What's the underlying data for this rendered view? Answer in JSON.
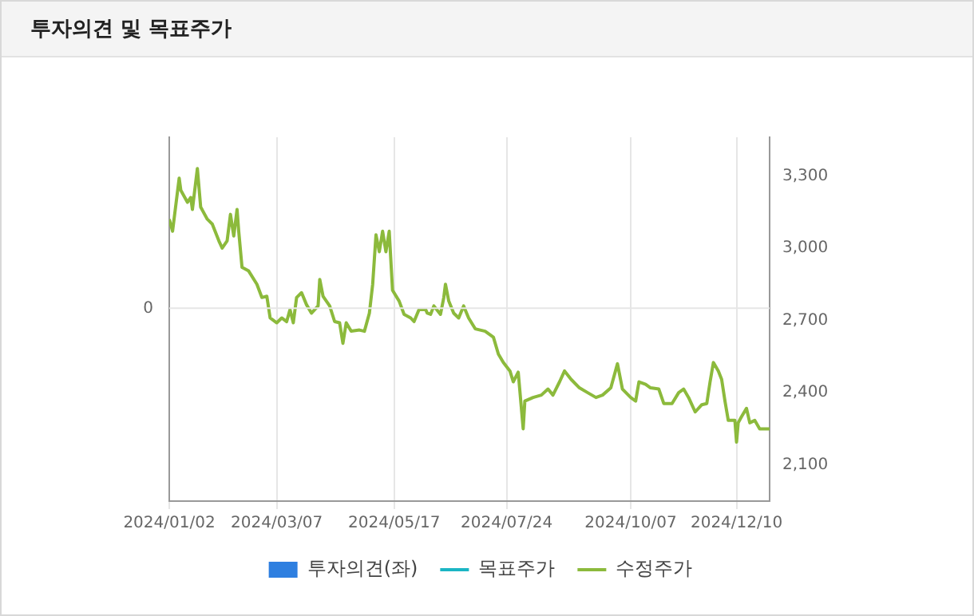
{
  "chart_data": {
    "type": "line",
    "title": "투자의견 및 목표주가",
    "xlim": [
      "2024-01-02",
      "2024-12-30"
    ],
    "xticks": [
      {
        "value": "2024-01-02",
        "label": "2024/01/02"
      },
      {
        "value": "2024-03-07",
        "label": "2024/03/07"
      },
      {
        "value": "2024-05-17",
        "label": "2024/05/17"
      },
      {
        "value": "2024-07-24",
        "label": "2024/07/24"
      },
      {
        "value": "2024-10-07",
        "label": "2024/10/07"
      },
      {
        "value": "2024-12-10",
        "label": "2024/12/10"
      }
    ],
    "annotations": [
      "0"
    ],
    "y2lim": [
      1950,
      3460
    ],
    "y2ticks": [
      {
        "value": 2100,
        "label": "2,100"
      },
      {
        "value": 2400,
        "label": "2,400"
      },
      {
        "value": 2700,
        "label": "2,700"
      },
      {
        "value": 3000,
        "label": "3,000"
      },
      {
        "value": 3300,
        "label": "3,300"
      }
    ],
    "grid": true,
    "legend": "bottom",
    "marker": "none",
    "line_style": "solid",
    "series": [
      {
        "name": "투자의견(좌)",
        "type": "bar",
        "color": "#2e7fe0"
      },
      {
        "name": "목표주가",
        "type": "line",
        "color": "#1bb5c4",
        "axis": "y2"
      },
      {
        "name": "수정주가",
        "color": "#8cba3c",
        "axis": "y2",
        "x": [
          "2024-01-02",
          "2024-01-04",
          "2024-01-08",
          "2024-01-09",
          "2024-01-13",
          "2024-01-15",
          "2024-01-16",
          "2024-01-19",
          "2024-01-21",
          "2024-01-25",
          "2024-01-28",
          "2024-02-01",
          "2024-02-03",
          "2024-02-06",
          "2024-02-08",
          "2024-02-10",
          "2024-02-12",
          "2024-02-13",
          "2024-02-15",
          "2024-02-19",
          "2024-02-24",
          "2024-02-27",
          "2024-03-01",
          "2024-03-03",
          "2024-03-07",
          "2024-03-10",
          "2024-03-13",
          "2024-03-15",
          "2024-03-17",
          "2024-03-19",
          "2024-03-22",
          "2024-03-25",
          "2024-03-28",
          "2024-04-01",
          "2024-04-02",
          "2024-04-04",
          "2024-04-08",
          "2024-04-11",
          "2024-04-14",
          "2024-04-16",
          "2024-04-18",
          "2024-04-21",
          "2024-04-26",
          "2024-04-29",
          "2024-05-02",
          "2024-05-04",
          "2024-05-06",
          "2024-05-08",
          "2024-05-10",
          "2024-05-12",
          "2024-05-14",
          "2024-05-16",
          "2024-05-20",
          "2024-05-23",
          "2024-05-27",
          "2024-05-29",
          "2024-06-01",
          "2024-06-05",
          "2024-06-06",
          "2024-06-08",
          "2024-06-10",
          "2024-06-14",
          "2024-06-16",
          "2024-06-17",
          "2024-06-19",
          "2024-06-22",
          "2024-06-25",
          "2024-06-28",
          "2024-07-01",
          "2024-07-05",
          "2024-07-11",
          "2024-07-16",
          "2024-07-19",
          "2024-07-22",
          "2024-07-26",
          "2024-07-28",
          "2024-07-31",
          "2024-08-03",
          "2024-08-04",
          "2024-08-09",
          "2024-08-14",
          "2024-08-18",
          "2024-08-21",
          "2024-08-25",
          "2024-08-28",
          "2024-09-01",
          "2024-09-06",
          "2024-09-11",
          "2024-09-16",
          "2024-09-20",
          "2024-09-25",
          "2024-09-29",
          "2024-10-02",
          "2024-10-07",
          "2024-10-10",
          "2024-10-12",
          "2024-10-16",
          "2024-10-19",
          "2024-10-24",
          "2024-10-27",
          "2024-11-01",
          "2024-11-05",
          "2024-11-08",
          "2024-11-11",
          "2024-11-15",
          "2024-11-19",
          "2024-11-22",
          "2024-11-24",
          "2024-11-26",
          "2024-11-29",
          "2024-12-01",
          "2024-12-03",
          "2024-12-05",
          "2024-12-09",
          "2024-12-10",
          "2024-12-11",
          "2024-12-13",
          "2024-12-16",
          "2024-12-18",
          "2024-12-21",
          "2024-12-24",
          "2024-12-30"
        ],
        "values": [
          3120,
          3070,
          3290,
          3240,
          3190,
          3210,
          3160,
          3330,
          3170,
          3120,
          3100,
          3030,
          3000,
          3030,
          3140,
          3050,
          3160,
          3070,
          2920,
          2905,
          2850,
          2795,
          2800,
          2710,
          2690,
          2710,
          2695,
          2745,
          2690,
          2795,
          2815,
          2765,
          2730,
          2760,
          2870,
          2800,
          2760,
          2695,
          2690,
          2605,
          2690,
          2655,
          2660,
          2655,
          2730,
          2850,
          3055,
          2985,
          3070,
          2985,
          3070,
          2825,
          2780,
          2725,
          2710,
          2695,
          2745,
          2745,
          2730,
          2725,
          2760,
          2725,
          2795,
          2850,
          2780,
          2730,
          2710,
          2760,
          2710,
          2665,
          2655,
          2630,
          2560,
          2525,
          2490,
          2445,
          2485,
          2250,
          2365,
          2380,
          2390,
          2415,
          2390,
          2445,
          2490,
          2455,
          2420,
          2400,
          2380,
          2390,
          2420,
          2520,
          2415,
          2380,
          2365,
          2445,
          2435,
          2420,
          2415,
          2355,
          2355,
          2400,
          2415,
          2380,
          2320,
          2350,
          2355,
          2445,
          2525,
          2490,
          2455,
          2365,
          2285,
          2285,
          2195,
          2275,
          2300,
          2335,
          2275,
          2285,
          2250,
          2250
        ]
      }
    ]
  }
}
